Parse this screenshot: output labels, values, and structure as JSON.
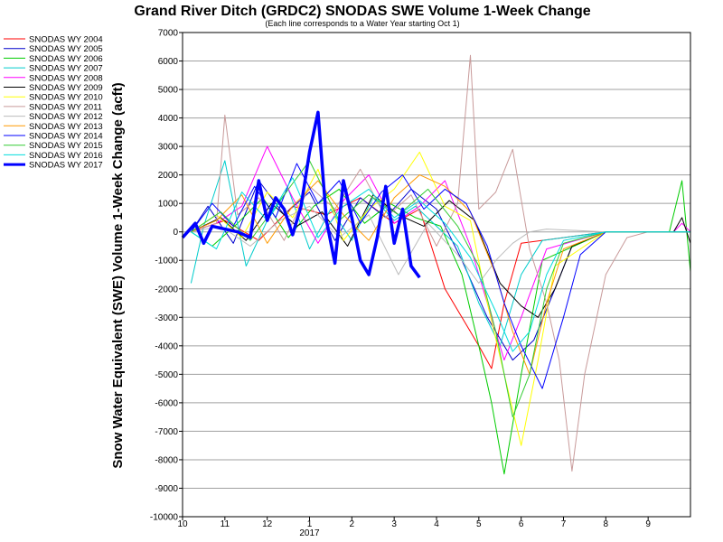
{
  "chart_data": {
    "type": "line",
    "title": "Grand River Ditch (GRDC2) SNODAS SWE Volume 1-Week Change",
    "subtitle": "(Each line corresponds to a Water Year starting Oct 1)",
    "ylabel": "Snow Water Equivalent (SWE) Volume 1-Week Change (acft)",
    "xlabel": "",
    "ylim": [
      -10000,
      7000
    ],
    "yticks": [
      7000,
      6000,
      5000,
      4000,
      3000,
      2000,
      1000,
      0,
      -1000,
      -2000,
      -3000,
      -4000,
      -5000,
      -6000,
      -7000,
      -8000,
      -9000,
      -10000
    ],
    "xlim": [
      0,
      12
    ],
    "xticks": [
      {
        "x": 0,
        "label": "10"
      },
      {
        "x": 1,
        "label": "11"
      },
      {
        "x": 2,
        "label": "12"
      },
      {
        "x": 3,
        "label": "1"
      },
      {
        "x": 4,
        "label": "2"
      },
      {
        "x": 5,
        "label": "3"
      },
      {
        "x": 6,
        "label": "4"
      },
      {
        "x": 7,
        "label": "5"
      },
      {
        "x": 8,
        "label": "6"
      },
      {
        "x": 9,
        "label": "7"
      },
      {
        "x": 10,
        "label": "8"
      },
      {
        "x": 11,
        "label": "9"
      }
    ],
    "year_label": {
      "x": 3,
      "label": "2017"
    },
    "grid": true,
    "legend_position": "left",
    "series": [
      {
        "name": "SNODAS WY 2004",
        "color": "#ff0000",
        "width": 1,
        "x": [
          0.2,
          1.0,
          1.8,
          2.6,
          3.4,
          4.2,
          5.0,
          5.6,
          6.2,
          6.6,
          7.0,
          7.3,
          7.6,
          8.0,
          10.0,
          12.0
        ],
        "y": [
          0,
          400,
          -300,
          900,
          600,
          1200,
          300,
          800,
          -2000,
          -3000,
          -4000,
          -4800,
          -2500,
          -400,
          0,
          0
        ]
      },
      {
        "name": "SNODAS WY 2005",
        "color": "#0000cc",
        "width": 1,
        "x": [
          0.2,
          0.6,
          1.2,
          1.8,
          2.4,
          3.0,
          3.6,
          4.2,
          4.8,
          5.4,
          6.0,
          6.6,
          7.2,
          7.8,
          8.3,
          8.8,
          9.2,
          10.0,
          12.0
        ],
        "y": [
          0,
          900,
          -400,
          1800,
          600,
          1400,
          -300,
          1200,
          500,
          1500,
          800,
          -1000,
          -3000,
          -4500,
          -3800,
          -2000,
          -500,
          0,
          0
        ]
      },
      {
        "name": "SNODAS WY 2006",
        "color": "#00cc00",
        "width": 1,
        "x": [
          0.2,
          0.7,
          1.3,
          1.9,
          2.5,
          3.1,
          3.7,
          4.3,
          4.9,
          5.5,
          6.1,
          6.6,
          7.0,
          7.3,
          7.6,
          8.0,
          8.5,
          10.0,
          11.5,
          11.8,
          12.0
        ],
        "y": [
          0,
          -500,
          300,
          1200,
          -200,
          900,
          1500,
          300,
          1000,
          500,
          200,
          -1500,
          -4000,
          -6000,
          -8500,
          -5000,
          -1000,
          0,
          0,
          1800,
          -1400
        ]
      },
      {
        "name": "SNODAS WY 2007",
        "color": "#00cccc",
        "width": 1,
        "x": [
          0.2,
          0.5,
          1.0,
          1.5,
          2.0,
          2.5,
          3.0,
          3.5,
          4.0,
          4.5,
          5.0,
          5.5,
          6.0,
          6.5,
          7.0,
          7.5,
          8.0,
          8.5,
          10.0,
          12.0
        ],
        "y": [
          -1800,
          200,
          2500,
          -1200,
          400,
          1500,
          -600,
          800,
          -300,
          1200,
          400,
          900,
          200,
          -500,
          -2500,
          -4000,
          -1500,
          -300,
          0,
          0
        ]
      },
      {
        "name": "SNODAS WY 2008",
        "color": "#ff00ff",
        "width": 1,
        "x": [
          0.2,
          0.8,
          1.4,
          2.0,
          2.6,
          3.2,
          3.8,
          4.4,
          5.0,
          5.6,
          6.2,
          6.8,
          7.2,
          7.6,
          8.0,
          8.6,
          10.0,
          11.6,
          11.8,
          12.0
        ],
        "y": [
          0,
          300,
          900,
          3000,
          1200,
          -400,
          1100,
          2000,
          300,
          900,
          1800,
          -500,
          -2500,
          -4500,
          -3000,
          -600,
          0,
          0,
          300,
          0
        ]
      },
      {
        "name": "SNODAS WY 2009",
        "color": "#000000",
        "width": 1,
        "x": [
          0.2,
          0.9,
          1.5,
          2.1,
          2.7,
          3.3,
          3.9,
          4.5,
          5.1,
          5.7,
          6.3,
          6.9,
          7.5,
          8.0,
          8.4,
          8.8,
          9.2,
          10.0,
          11.6,
          11.8,
          12.0
        ],
        "y": [
          0,
          500,
          -300,
          1000,
          200,
          700,
          -500,
          1300,
          600,
          200,
          1100,
          400,
          -1800,
          -2600,
          -3000,
          -2000,
          -500,
          0,
          0,
          500,
          -400
        ]
      },
      {
        "name": "SNODAS WY 2010",
        "color": "#ffff00",
        "width": 1,
        "x": [
          0.2,
          0.8,
          1.4,
          2.0,
          2.6,
          3.2,
          3.8,
          4.4,
          5.0,
          5.6,
          6.2,
          6.8,
          7.2,
          7.6,
          8.0,
          8.4,
          8.8,
          10.0,
          12.0
        ],
        "y": [
          0,
          600,
          -200,
          1400,
          500,
          2200,
          -300,
          800,
          1500,
          2800,
          900,
          400,
          -2500,
          -5000,
          -7500,
          -4500,
          -1200,
          0,
          0
        ]
      },
      {
        "name": "SNODAS WY 2011",
        "color": "#c89a9a",
        "width": 1,
        "x": [
          0.2,
          0.8,
          1.0,
          1.3,
          1.8,
          2.4,
          3.0,
          3.6,
          4.2,
          4.8,
          5.4,
          6.0,
          6.5,
          6.8,
          7.0,
          7.4,
          7.8,
          8.2,
          8.6,
          8.9,
          9.2,
          9.5,
          10.0,
          10.5,
          11.0,
          12.0
        ],
        "y": [
          0,
          300,
          4100,
          600,
          1200,
          -300,
          1600,
          800,
          2200,
          500,
          1300,
          -500,
          1000,
          6200,
          800,
          1400,
          2900,
          -600,
          -2500,
          -4500,
          -8400,
          -5000,
          -1500,
          -200,
          0,
          0
        ]
      },
      {
        "name": "SNODAS WY 2012",
        "color": "#bbbbbb",
        "width": 1,
        "x": [
          0.2,
          0.9,
          1.6,
          2.3,
          3.0,
          3.7,
          4.4,
          5.1,
          5.8,
          6.5,
          7.0,
          7.4,
          7.8,
          8.2,
          8.6,
          10.0,
          12.0
        ],
        "y": [
          0,
          200,
          -500,
          400,
          900,
          -200,
          600,
          -1500,
          300,
          -800,
          -1800,
          -1000,
          -400,
          0,
          100,
          0,
          0
        ]
      },
      {
        "name": "SNODAS WY 2013",
        "color": "#ff9900",
        "width": 1,
        "x": [
          0.2,
          0.8,
          1.4,
          2.0,
          2.6,
          3.2,
          3.8,
          4.4,
          5.0,
          5.6,
          6.2,
          6.8,
          7.4,
          7.8,
          8.2,
          8.6,
          9.0,
          10.0,
          12.0
        ],
        "y": [
          0,
          400,
          1300,
          -400,
          900,
          1800,
          600,
          -300,
          1200,
          2000,
          1600,
          700,
          -1500,
          -3500,
          -5000,
          -2500,
          -600,
          0,
          0
        ]
      },
      {
        "name": "SNODAS WY 2014",
        "color": "#0000ff",
        "width": 1,
        "x": [
          0.2,
          0.7,
          1.2,
          1.7,
          2.2,
          2.7,
          3.2,
          3.7,
          4.2,
          4.7,
          5.2,
          5.7,
          6.2,
          6.7,
          7.2,
          7.6,
          8.0,
          8.5,
          9.0,
          9.4,
          10.0,
          12.0
        ],
        "y": [
          0,
          1000,
          200,
          1600,
          500,
          2400,
          1000,
          1800,
          300,
          1400,
          2000,
          800,
          1500,
          1000,
          -500,
          -2500,
          -4000,
          -5500,
          -3000,
          -800,
          0,
          0
        ]
      },
      {
        "name": "SNODAS WY 2015",
        "color": "#33cc33",
        "width": 1,
        "x": [
          0.2,
          0.9,
          1.6,
          2.3,
          3.0,
          3.7,
          4.4,
          5.1,
          5.8,
          6.5,
          7.0,
          7.4,
          7.8,
          8.2,
          8.6,
          9.0,
          10.0,
          12.0
        ],
        "y": [
          0,
          700,
          -300,
          1100,
          2500,
          400,
          1300,
          600,
          1500,
          200,
          -1200,
          -3500,
          -6500,
          -5000,
          -2000,
          -400,
          0,
          0
        ]
      },
      {
        "name": "SNODAS WY 2016",
        "color": "#00dddd",
        "width": 1,
        "x": [
          0.2,
          0.8,
          1.4,
          2.0,
          2.6,
          3.2,
          3.8,
          4.4,
          5.0,
          5.6,
          6.2,
          6.8,
          7.4,
          7.8,
          8.2,
          8.6,
          9.0,
          10.0,
          12.0
        ],
        "y": [
          0,
          -600,
          1400,
          400,
          1900,
          -200,
          900,
          1500,
          500,
          1100,
          300,
          -900,
          -2800,
          -4200,
          -3500,
          -1500,
          -300,
          0,
          0
        ]
      },
      {
        "name": "SNODAS WY 2017",
        "color": "#0000ff",
        "width": 3.5,
        "x": [
          0.0,
          0.3,
          0.5,
          0.7,
          1.0,
          1.3,
          1.6,
          1.8,
          2.0,
          2.2,
          2.4,
          2.6,
          2.8,
          3.0,
          3.2,
          3.4,
          3.6,
          3.8,
          4.0,
          4.2,
          4.4,
          4.6,
          4.8,
          5.0,
          5.2,
          5.4,
          5.6
        ],
        "y": [
          -200,
          300,
          -400,
          200,
          100,
          0,
          -200,
          1800,
          400,
          1200,
          800,
          -100,
          900,
          2800,
          4200,
          400,
          -1100,
          1800,
          500,
          -1000,
          -1500,
          -200,
          1600,
          -400,
          800,
          -1200,
          -1600
        ]
      }
    ]
  }
}
